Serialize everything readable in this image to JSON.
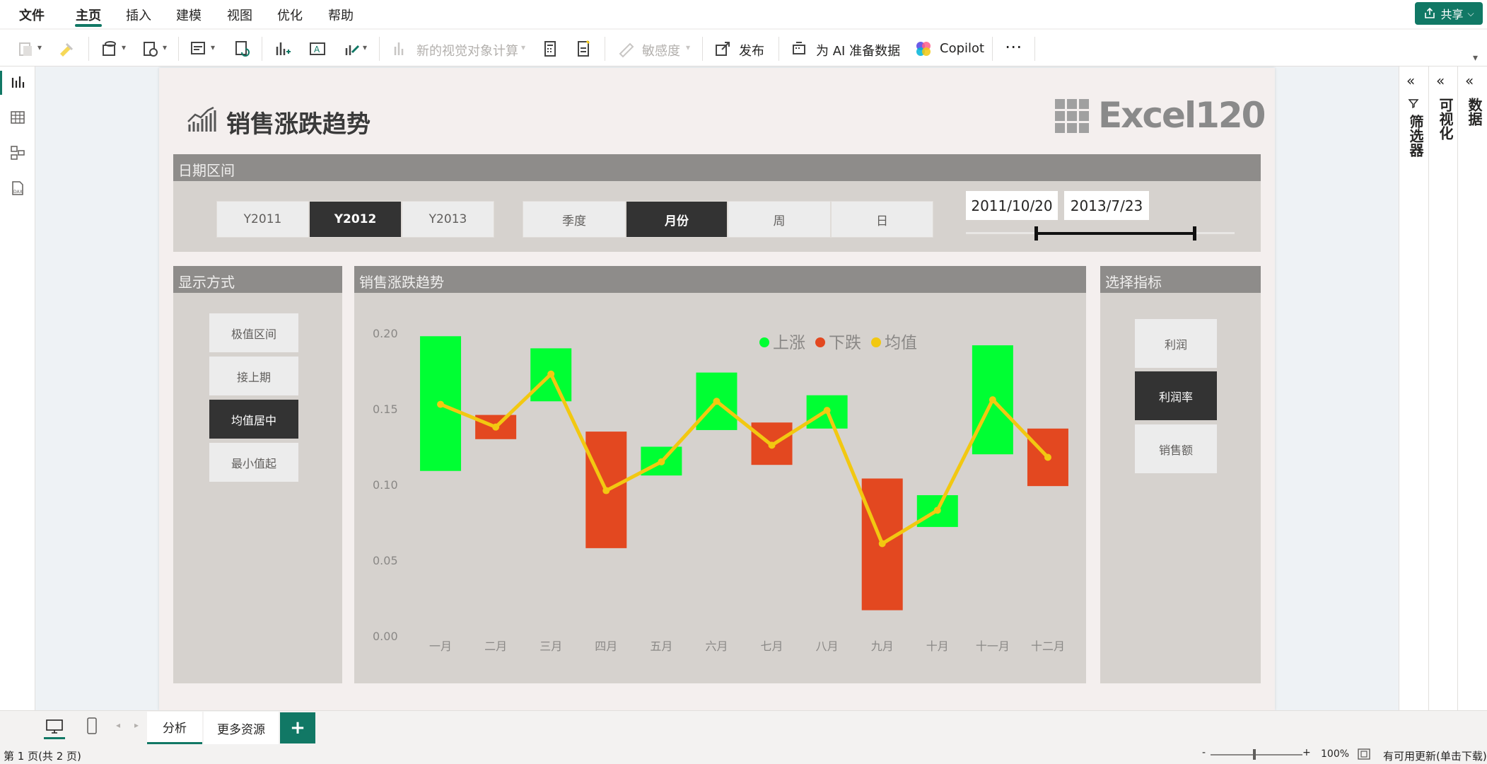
{
  "menu": {
    "items": [
      "文件",
      "主页",
      "插入",
      "建模",
      "视图",
      "优化",
      "帮助"
    ],
    "share_label": "共享"
  },
  "toolbar": {
    "new_visual_calc": "新的视觉对象计算",
    "sensitivity": "敏感度",
    "publish": "发布",
    "prep_ai": "为 AI 准备数据",
    "copilot": "Copilot",
    "more": "⋯"
  },
  "report": {
    "title": "销售涨跌趋势",
    "logo_text": "Excel120",
    "date_panel": {
      "header": "日期区间",
      "years": [
        "Y2011",
        "Y2012",
        "Y2013"
      ],
      "year_selected": "Y2012",
      "granularity": [
        "季度",
        "月份",
        "周",
        "日"
      ],
      "granularity_selected": "月份",
      "start_date": "2011/10/20",
      "end_date": "2013/7/23",
      "range_start_fraction": 0.26,
      "range_end_fraction": 0.85
    },
    "display_panel": {
      "header": "显示方式",
      "options": [
        "极值区间",
        "接上期",
        "均值居中",
        "最小值起"
      ],
      "selected": "均值居中"
    },
    "chart_panel": {
      "header": "销售涨跌趋势"
    },
    "metric_panel": {
      "header": "选择指标",
      "options": [
        "利润",
        "利润率",
        "销售额"
      ],
      "selected": "利润率"
    }
  },
  "chart_data": {
    "type": "bar",
    "title": "",
    "xlabel": "",
    "ylabel": "",
    "ylim": [
      0,
      0.2
    ],
    "yticks": [
      "0.00",
      "0.05",
      "0.10",
      "0.15",
      "0.20"
    ],
    "categories": [
      "一月",
      "二月",
      "三月",
      "四月",
      "五月",
      "六月",
      "七月",
      "八月",
      "九月",
      "十月",
      "十一月",
      "十二月"
    ],
    "legend": [
      "上涨",
      "下跌",
      "均值"
    ],
    "legend_position": "top-right",
    "colors": {
      "up": "#00ff33",
      "down": "#e34820",
      "mean": "#f2c811"
    },
    "bars": [
      {
        "low": 0.109,
        "high": 0.198,
        "dir": "up"
      },
      {
        "low": 0.13,
        "high": 0.146,
        "dir": "down"
      },
      {
        "low": 0.155,
        "high": 0.19,
        "dir": "up"
      },
      {
        "low": 0.058,
        "high": 0.135,
        "dir": "down"
      },
      {
        "low": 0.106,
        "high": 0.125,
        "dir": "up"
      },
      {
        "low": 0.136,
        "high": 0.174,
        "dir": "up"
      },
      {
        "low": 0.113,
        "high": 0.141,
        "dir": "down"
      },
      {
        "low": 0.137,
        "high": 0.159,
        "dir": "up"
      },
      {
        "low": 0.017,
        "high": 0.104,
        "dir": "down"
      },
      {
        "low": 0.072,
        "high": 0.093,
        "dir": "up"
      },
      {
        "low": 0.12,
        "high": 0.192,
        "dir": "up"
      },
      {
        "low": 0.099,
        "high": 0.137,
        "dir": "down"
      }
    ],
    "mean": [
      0.153,
      0.138,
      0.173,
      0.096,
      0.115,
      0.155,
      0.126,
      0.149,
      0.061,
      0.083,
      0.156,
      0.118
    ],
    "grid": false
  },
  "right_panes": {
    "filters": "筛选器",
    "visualizations": "可视化",
    "data": "数据"
  },
  "pages": {
    "tabs": [
      "分析",
      "更多资源"
    ],
    "active": "分析",
    "add_label": "+"
  },
  "status": {
    "page_info": "第 1 页(共 2 页)",
    "zoom": "100%",
    "update": "有可用更新(单击下载)"
  }
}
